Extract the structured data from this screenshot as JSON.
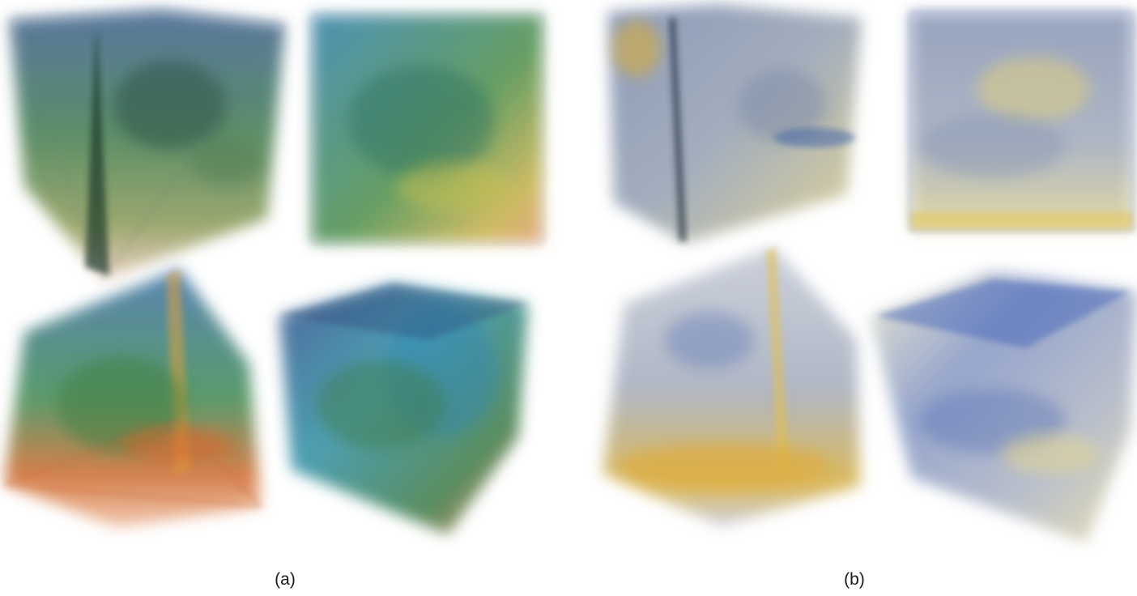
{
  "figure": {
    "panels": [
      {
        "label": "(a)",
        "colormap": "green-blue-orange",
        "accent": "#2f6f3a"
      },
      {
        "label": "(b)",
        "colormap": "blue-gray-yellow",
        "accent": "#3a5bb0"
      }
    ],
    "render_count_per_panel": 4,
    "background": "#ffffff"
  }
}
